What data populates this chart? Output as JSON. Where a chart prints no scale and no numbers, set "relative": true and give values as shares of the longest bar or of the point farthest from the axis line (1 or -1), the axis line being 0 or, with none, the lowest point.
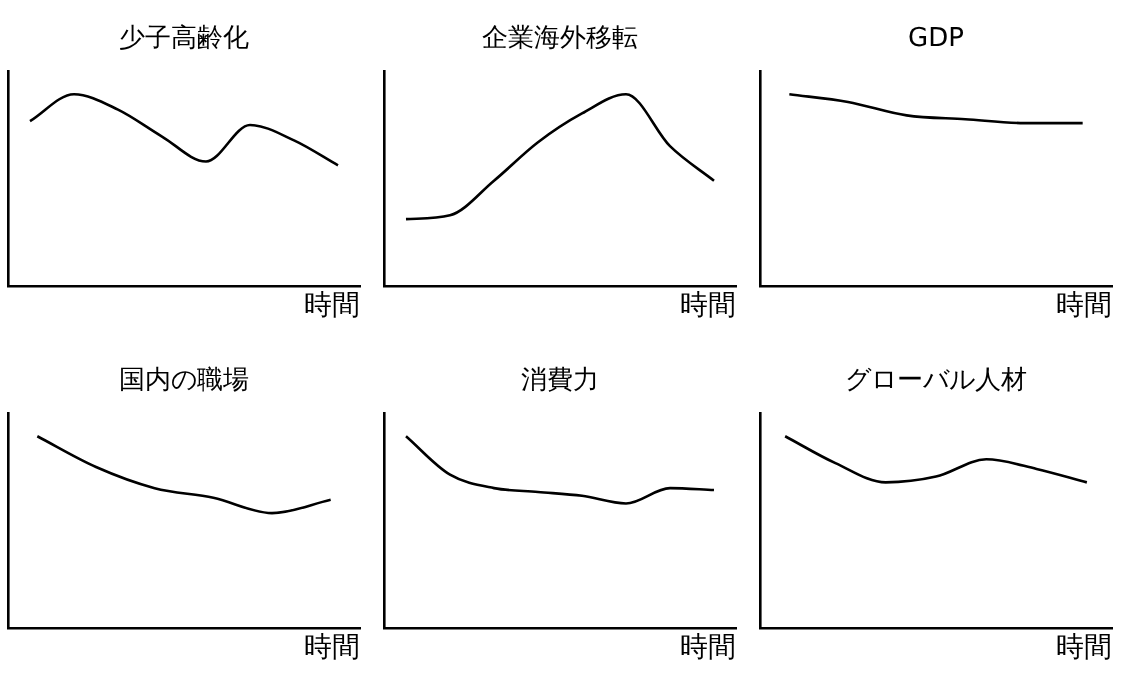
{
  "chart_data": [
    {
      "type": "line",
      "title": "少子高齢化",
      "xlabel": "時間",
      "relative": true,
      "color": "#000000",
      "marker": "none",
      "grid": false,
      "legend": false,
      "categories": [
        null,
        null,
        null,
        null,
        null,
        null,
        null,
        null
      ],
      "values": [
        0.86,
        1,
        0.92,
        0.78,
        0.65,
        0.84,
        0.76,
        0.63
      ]
    },
    {
      "type": "line",
      "title": "企業海外移転",
      "xlabel": "時間",
      "relative": true,
      "color": "#000000",
      "marker": "none",
      "grid": false,
      "legend": false,
      "categories": [
        null,
        null,
        null,
        null,
        null,
        null,
        null,
        null
      ],
      "values": [
        0.35,
        0.37,
        0.55,
        0.75,
        0.9,
        1,
        0.73,
        0.55
      ]
    },
    {
      "type": "line",
      "title": "GDP",
      "xlabel": "時間",
      "relative": true,
      "color": "#000000",
      "marker": "none",
      "grid": false,
      "legend": false,
      "categories": [
        null,
        null,
        null,
        null,
        null,
        null
      ],
      "values": [
        1,
        0.96,
        0.89,
        0.87,
        0.85,
        0.85
      ]
    },
    {
      "type": "line",
      "title": "国内の職場",
      "xlabel": "時間",
      "relative": true,
      "color": "#000000",
      "marker": "none",
      "grid": false,
      "legend": false,
      "categories": [
        null,
        null,
        null,
        null,
        null,
        null
      ],
      "values": [
        1,
        0.84,
        0.73,
        0.68,
        0.6,
        0.67
      ]
    },
    {
      "type": "line",
      "title": "消費力",
      "xlabel": "時間",
      "relative": true,
      "color": "#000000",
      "marker": "none",
      "grid": false,
      "legend": false,
      "categories": [
        null,
        null,
        null,
        null,
        null,
        null,
        null,
        null
      ],
      "values": [
        1,
        0.8,
        0.73,
        0.71,
        0.69,
        0.65,
        0.73,
        0.72
      ]
    },
    {
      "type": "line",
      "title": "グローバル人材",
      "xlabel": "時間",
      "relative": true,
      "color": "#000000",
      "marker": "none",
      "grid": false,
      "legend": false,
      "categories": [
        null,
        null,
        null,
        null,
        null,
        null,
        null
      ],
      "values": [
        1,
        0.86,
        0.76,
        0.79,
        0.88,
        0.83,
        0.76
      ]
    }
  ]
}
